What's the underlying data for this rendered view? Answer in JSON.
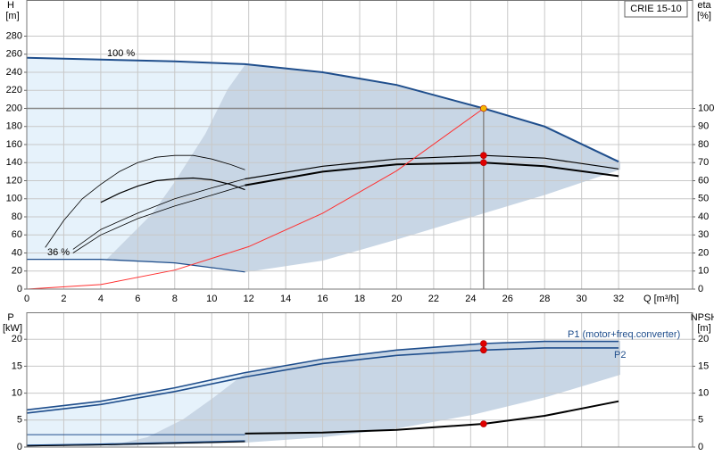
{
  "chart_data": [
    {
      "type": "line",
      "title": "CRIE 15-10",
      "ylabel": "H",
      "yunit": "[m]",
      "y2label": "eta",
      "y2unit": "[%]",
      "xlabel": "Q [m³/h]",
      "xlim": [
        0,
        36
      ],
      "xticks": [
        0,
        2,
        4,
        6,
        8,
        10,
        12,
        14,
        16,
        18,
        20,
        22,
        24,
        26,
        28,
        30,
        32
      ],
      "ylim": [
        0,
        320
      ],
      "yticks": [
        0,
        20,
        40,
        60,
        80,
        100,
        120,
        140,
        160,
        180,
        200,
        220,
        240,
        260,
        280
      ],
      "y2lim": [
        0,
        160
      ],
      "y2ticks": [
        0,
        10,
        20,
        30,
        40,
        50,
        60,
        70,
        80,
        90,
        100
      ],
      "grid": true,
      "crosshair": true,
      "series": [
        {
          "name": "100 %",
          "color": "#1f4e8c",
          "width": 2,
          "x": [
            0,
            4,
            8,
            11.8,
            16,
            20,
            24.7,
            28,
            32
          ],
          "values": [
            256,
            254,
            252,
            249,
            240,
            226,
            200,
            180,
            141
          ]
        },
        {
          "name": "36 %",
          "color": "#1f4e8c",
          "width": 1.2,
          "x": [
            0,
            4,
            8,
            11.8
          ],
          "values": [
            33,
            33,
            29,
            19
          ]
        },
        {
          "color": "#000000",
          "width": 2,
          "axis": "y2",
          "x": [
            11.8,
            16,
            20,
            24.7,
            28,
            32
          ],
          "values": [
            57.5,
            65,
            69,
            70,
            68,
            62.5
          ]
        },
        {
          "color": "#000000",
          "width": 1.2,
          "axis": "y2",
          "x": [
            11.8,
            16,
            20,
            24.7,
            28,
            32
          ],
          "values": [
            61,
            68,
            72,
            74,
            72.5,
            66.5
          ]
        },
        {
          "color": "#000000",
          "width": 0.8,
          "axis": "y2",
          "x": [
            1,
            2,
            3,
            4,
            5,
            6,
            7,
            8,
            9,
            10,
            11,
            11.8
          ],
          "values": [
            23,
            38,
            50,
            58,
            65,
            70,
            73,
            74,
            74,
            72,
            69,
            66
          ]
        },
        {
          "color": "#000000",
          "width": 1.2,
          "axis": "y2",
          "x": [
            4,
            5,
            6,
            7,
            8,
            9,
            10,
            11,
            11.8
          ],
          "values": [
            48,
            53,
            57,
            60,
            61,
            61.5,
            60.5,
            58,
            55
          ]
        },
        {
          "color": "#000000",
          "width": 0.8,
          "axis": "y2",
          "x": [
            2.5,
            4,
            6,
            8,
            10,
            11.8
          ],
          "values": [
            20,
            30,
            39,
            46,
            52,
            57.5
          ]
        },
        {
          "color": "#000000",
          "width": 0.8,
          "axis": "y2",
          "x": [
            2.5,
            4,
            6,
            8,
            10,
            11.8
          ],
          "values": [
            22,
            33,
            42,
            50,
            56,
            61
          ]
        },
        {
          "color": "#ff3030",
          "width": 1,
          "x": [
            0,
            4,
            8,
            12,
            16,
            20,
            24.7
          ],
          "values": [
            0,
            5,
            21,
            47,
            84,
            131,
            200
          ]
        }
      ],
      "points": [
        {
          "x": 24.7,
          "y": 200,
          "color": "#f5b800"
        },
        {
          "x": 24.7,
          "y": 74,
          "axis": "y2",
          "color": "#e00000"
        },
        {
          "x": 24.7,
          "y": 70,
          "axis": "y2",
          "color": "#e00000"
        }
      ]
    },
    {
      "type": "line",
      "ylabel": "P",
      "yunit": "[kW]",
      "y2label": "NPSH",
      "y2unit": "[m]",
      "xlim": [
        0,
        36
      ],
      "ylim": [
        0,
        25
      ],
      "yticks": [
        0,
        5,
        10,
        15,
        20
      ],
      "y2lim": [
        0,
        25
      ],
      "y2ticks": [
        0,
        5,
        10,
        15,
        20
      ],
      "grid": true,
      "series": [
        {
          "name": "P1 (motor+freq.converter)",
          "color": "#1f4e8c",
          "width": 1.6,
          "x": [
            0,
            4,
            8,
            11.8,
            16,
            20,
            24.7,
            28,
            32
          ],
          "values": [
            6.9,
            8.5,
            11,
            13.8,
            16.3,
            18,
            19.2,
            19.6,
            19.6
          ]
        },
        {
          "name": "P2",
          "color": "#1f4e8c",
          "width": 1.6,
          "x": [
            0,
            4,
            8,
            11.8,
            16,
            20,
            24.7,
            28,
            32
          ],
          "values": [
            6.3,
            7.9,
            10.3,
            13,
            15.5,
            17,
            18,
            18.4,
            18.4
          ]
        },
        {
          "color": "#000000",
          "width": 2,
          "axis": "y2",
          "x": [
            11.8,
            16,
            20,
            24.7,
            28,
            32
          ],
          "values": [
            2.5,
            2.7,
            3.2,
            4.3,
            5.8,
            8.5
          ]
        },
        {
          "color": "#1f4e8c",
          "width": 1,
          "axis": "y2",
          "x": [
            0,
            11.8
          ],
          "values": [
            2.3,
            2.3
          ]
        },
        {
          "color": "#1f4e8c",
          "width": 2,
          "x": [
            0,
            4,
            8,
            11.8
          ],
          "values": [
            0.3,
            0.5,
            0.8,
            1.1
          ]
        },
        {
          "color": "#000000",
          "width": 1,
          "x": [
            0,
            4,
            8,
            11.8
          ],
          "values": [
            0.2,
            0.4,
            0.7,
            1.0
          ]
        }
      ],
      "points": [
        {
          "x": 24.7,
          "y": 19.2,
          "color": "#e00000"
        },
        {
          "x": 24.7,
          "y": 18,
          "color": "#e00000"
        },
        {
          "x": 24.7,
          "y": 4.3,
          "axis": "y2",
          "color": "#e00000"
        }
      ]
    }
  ]
}
